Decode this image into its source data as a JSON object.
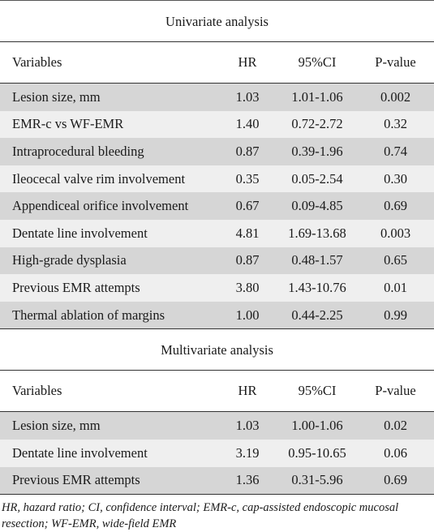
{
  "univariate": {
    "title": "Univariate analysis",
    "headers": [
      "Variables",
      "HR",
      "95%CI",
      "P-value"
    ],
    "rows": [
      [
        "Lesion size, mm",
        "1.03",
        "1.01-1.06",
        "0.002"
      ],
      [
        "EMR-c vs WF-EMR",
        "1.40",
        "0.72-2.72",
        "0.32"
      ],
      [
        "Intraprocedural bleeding",
        "0.87",
        "0.39-1.96",
        "0.74"
      ],
      [
        "Ileocecal valve rim involvement",
        "0.35",
        "0.05-2.54",
        "0.30"
      ],
      [
        "Appendiceal orifice involvement",
        "0.67",
        "0.09-4.85",
        "0.69"
      ],
      [
        "Dentate line involvement",
        "4.81",
        "1.69-13.68",
        "0.003"
      ],
      [
        "High-grade dysplasia",
        "0.87",
        "0.48-1.57",
        "0.65"
      ],
      [
        "Previous EMR attempts",
        "3.80",
        "1.43-10.76",
        "0.01"
      ],
      [
        "Thermal ablation of margins",
        "1.00",
        "0.44-2.25",
        "0.99"
      ]
    ]
  },
  "multivariate": {
    "title": "Multivariate analysis",
    "headers": [
      "Variables",
      "HR",
      "95%CI",
      "P-value"
    ],
    "rows": [
      [
        "Lesion size, mm",
        "1.03",
        "1.00-1.06",
        "0.02"
      ],
      [
        "Dentate line involvement",
        "3.19",
        "0.95-10.65",
        "0.06"
      ],
      [
        "Previous EMR attempts",
        "1.36",
        "0.31-5.96",
        "0.69"
      ]
    ]
  },
  "footnote": "HR, hazard ratio; CI, confidence interval; EMR-c, cap-assisted endoscopic mucosal resection; WF-EMR, wide-field EMR"
}
